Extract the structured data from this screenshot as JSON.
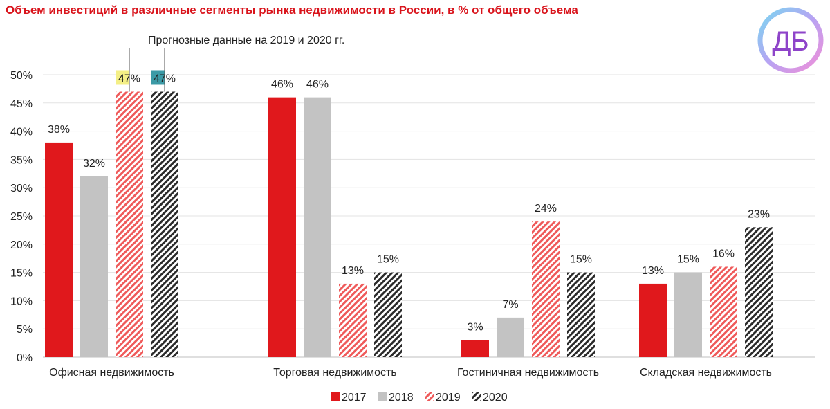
{
  "chart_data": {
    "type": "bar",
    "title": "Объем инвестиций в различные сегменты рынка недвижимости в России, в % от общего объема",
    "annotation": "Прогнозные данные на 2019 и 2020 гг.",
    "categories": [
      "Офисная недвижимость",
      "Торговая недвижимость",
      "Гостиничная недвижимость",
      "Складская недвижимость"
    ],
    "series": [
      {
        "name": "2017",
        "values": [
          38,
          46,
          3,
          13
        ],
        "color": "#e0181c",
        "pattern": "solid"
      },
      {
        "name": "2018",
        "values": [
          32,
          46,
          7,
          15
        ],
        "color": "#c3c3c3",
        "pattern": "solid"
      },
      {
        "name": "2019",
        "values": [
          47,
          13,
          24,
          16
        ],
        "color": "#ef5a5a",
        "pattern": "hatch"
      },
      {
        "name": "2020",
        "values": [
          47,
          15,
          15,
          23
        ],
        "color": "#2b2b2b",
        "pattern": "hatch"
      }
    ],
    "value_suffix": "%",
    "ylim": [
      0,
      50
    ],
    "yticks": [
      "0%",
      "5%",
      "10%",
      "15%",
      "20%",
      "25%",
      "30%",
      "35%",
      "40%",
      "45%",
      "50%"
    ],
    "highlighted_labels": [
      {
        "series": "2019",
        "category": "Офисная недвижимость",
        "highlight_color": "#f4ef86"
      },
      {
        "series": "2020",
        "category": "Офисная недвижимость",
        "highlight_color": "#3b9aa6"
      }
    ],
    "grid": true,
    "legend_position": "bottom-center"
  },
  "logo": {
    "text": "ДБ",
    "icon": "db-logo-icon"
  }
}
